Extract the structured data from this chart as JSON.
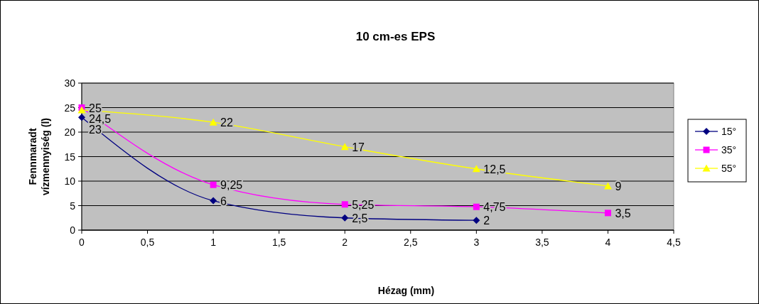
{
  "chart_data": {
    "type": "line",
    "title": "10 cm-es EPS",
    "xlabel": "Hézag (mm)",
    "ylabel": "Fennmaradt vízmennyiség (l)",
    "xlim": [
      0,
      4.5
    ],
    "xticks": [
      0,
      {
        "value": 0.5,
        "label": "0,5"
      },
      1,
      {
        "value": 1.5,
        "label": "1,5"
      },
      2,
      {
        "value": 2.5,
        "label": "2,5"
      },
      3,
      {
        "value": 3.5,
        "label": "3,5"
      },
      4,
      {
        "value": 4.5,
        "label": "4,5"
      }
    ],
    "ylim": [
      0,
      30
    ],
    "yticks": [
      0,
      5,
      10,
      15,
      20,
      25,
      30
    ],
    "grid": "y",
    "legend": "right",
    "series": [
      {
        "name": "15°",
        "color": "#000080",
        "marker": "diamond",
        "x": [
          0,
          1,
          2,
          3
        ],
        "values": [
          23,
          6,
          2.5,
          2
        ],
        "value_labels": [
          "23",
          "6",
          "2,5",
          "2"
        ]
      },
      {
        "name": "35°",
        "color": "#ff00ff",
        "marker": "square",
        "x": [
          0,
          1,
          2,
          3,
          4
        ],
        "values": [
          25,
          9.25,
          5.25,
          4.75,
          3.5
        ],
        "value_labels": [
          "25",
          "9,25",
          "5,25",
          "4,75",
          "3,5"
        ]
      },
      {
        "name": "55°",
        "color": "#ffff00",
        "marker": "triangle",
        "x": [
          0,
          1,
          2,
          3,
          4
        ],
        "values": [
          24.5,
          22,
          17,
          12.5,
          9
        ],
        "value_labels": [
          "24,5",
          "22",
          "17",
          "12,5",
          "9"
        ]
      }
    ]
  }
}
